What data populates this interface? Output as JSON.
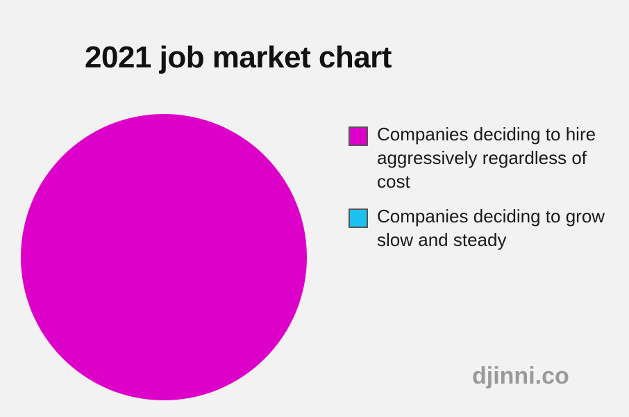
{
  "chart_data": {
    "type": "pie",
    "title": "2021 job market chart",
    "series": [
      {
        "name": "Companies deciding to hire aggressively regardless of cost",
        "value": 100,
        "color": "#dd00c9"
      },
      {
        "name": "Companies deciding to grow slow and steady",
        "value": 0,
        "color": "#1ec0f0"
      }
    ],
    "legend_placement": "right"
  },
  "watermark": "djinni.co"
}
